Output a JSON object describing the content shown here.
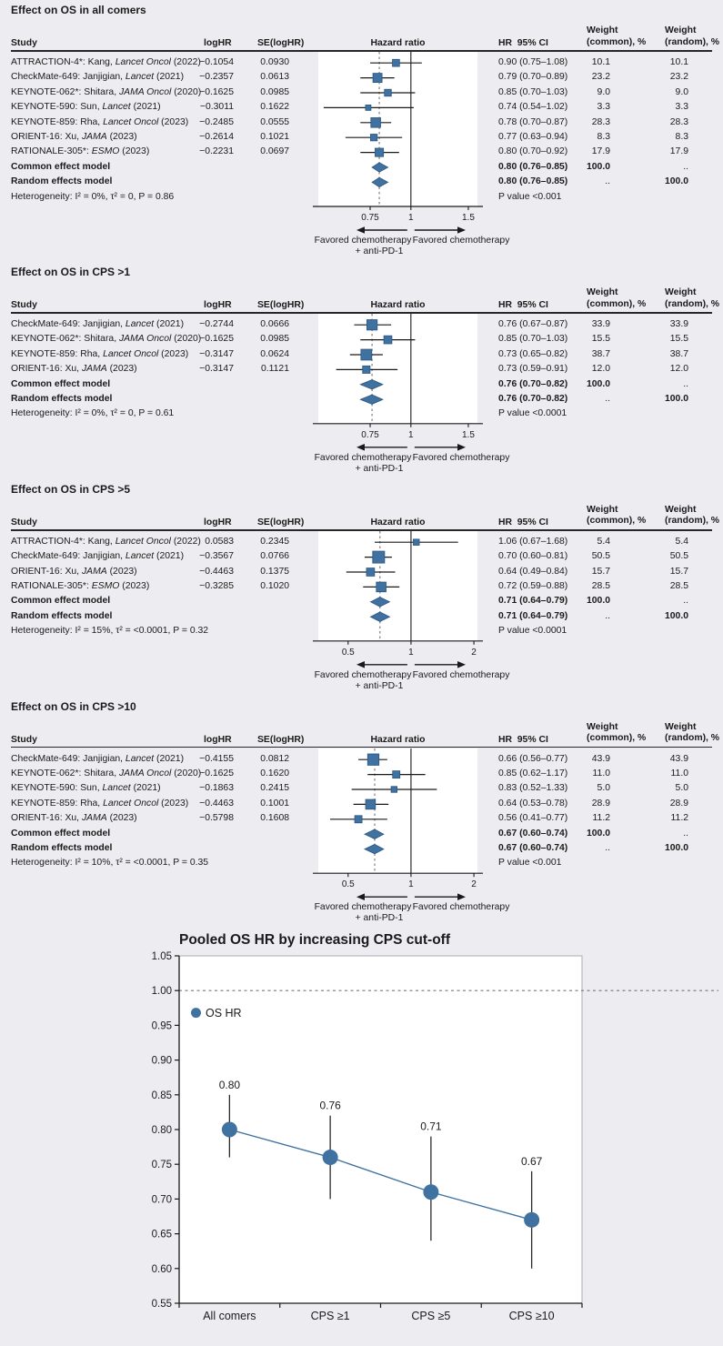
{
  "colors": {
    "accent": "#3f72a0",
    "accent_stroke": "#2a5580",
    "ci_line": "#1a1a1a",
    "pooled_dash": "#8a8a8a",
    "page_bg": "#ededf1",
    "panel_bg": "#ffffff"
  },
  "forest_header": {
    "study": "Study",
    "loghr": "logHR",
    "se": "SE(logHR)",
    "hazard": "Hazard ratio",
    "hr_ci": "HR  95% CI",
    "w_common": "Weight\n(common), %",
    "w_random": "Weight\n(random), %"
  },
  "forest_footer": {
    "left1": "Favored chemotherapy",
    "left2": "+ anti-PD-1",
    "right": "Favored chemotherapy"
  },
  "chart_data": [
    {
      "type": "forest",
      "title": "Effect on OS in all comers",
      "axis": {
        "ticks": [
          0.75,
          1,
          1.5
        ],
        "min": 0.52,
        "max": 1.6
      },
      "studies": [
        {
          "label": [
            "ATTRACTION-4*: Kang, ",
            "Lancet Oncol",
            " (2022)"
          ],
          "loghr": "−0.1054",
          "se": "0.0930",
          "hr": 0.9,
          "lo": 0.75,
          "hi": 1.08,
          "hr_ci": "0.90 (0.75–1.08)",
          "weight": 10.1,
          "w_common": "10.1",
          "w_random": "10.1"
        },
        {
          "label": [
            "CheckMate-649: Janjigian, ",
            "Lancet",
            " (2021)"
          ],
          "loghr": "−0.2357",
          "se": "0.0613",
          "hr": 0.79,
          "lo": 0.7,
          "hi": 0.89,
          "hr_ci": "0.79 (0.70–0.89)",
          "weight": 23.2,
          "w_common": "23.2",
          "w_random": "23.2"
        },
        {
          "label": [
            "KEYNOTE-062*: Shitara, ",
            "JAMA Oncol",
            " (2020)"
          ],
          "loghr": "−0.1625",
          "se": "0.0985",
          "hr": 0.85,
          "lo": 0.7,
          "hi": 1.03,
          "hr_ci": "0.85 (0.70–1.03)",
          "weight": 9.0,
          "w_common": "9.0",
          "w_random": "9.0"
        },
        {
          "label": [
            "KEYNOTE-590: Sun, ",
            "Lancet",
            " (2021)"
          ],
          "loghr": "−0.3011",
          "se": "0.1622",
          "hr": 0.74,
          "lo": 0.54,
          "hi": 1.02,
          "hr_ci": "0.74 (0.54–1.02)",
          "weight": 3.3,
          "w_common": "3.3",
          "w_random": "3.3"
        },
        {
          "label": [
            "KEYNOTE-859: Rha, ",
            "Lancet Oncol",
            " (2023)"
          ],
          "loghr": "−0.2485",
          "se": "0.0555",
          "hr": 0.78,
          "lo": 0.7,
          "hi": 0.87,
          "hr_ci": "0.78 (0.70–0.87)",
          "weight": 28.3,
          "w_common": "28.3",
          "w_random": "28.3"
        },
        {
          "label": [
            "ORIENT-16: Xu, ",
            "JAMA",
            " (2023)"
          ],
          "loghr": "−0.2614",
          "se": "0.1021",
          "hr": 0.77,
          "lo": 0.63,
          "hi": 0.94,
          "hr_ci": "0.77 (0.63–0.94)",
          "weight": 8.3,
          "w_common": "8.3",
          "w_random": "8.3"
        },
        {
          "label": [
            "RATIONALE-305*: ",
            "ESMO",
            " (2023)"
          ],
          "loghr": "−0.2231",
          "se": "0.0697",
          "hr": 0.8,
          "lo": 0.7,
          "hi": 0.92,
          "hr_ci": "0.80 (0.70–0.92)",
          "weight": 17.9,
          "w_common": "17.9",
          "w_random": "17.9"
        }
      ],
      "common": {
        "label": "Common effect model",
        "hr": 0.8,
        "lo": 0.76,
        "hi": 0.85,
        "hr_ci": "0.80 (0.76–0.85)",
        "w_common": "100.0",
        "w_random": ".."
      },
      "random": {
        "label": "Random effects model",
        "hr": 0.8,
        "lo": 0.76,
        "hi": 0.85,
        "hr_ci": "0.80 (0.76–0.85)",
        "w_common": "..",
        "w_random": "100.0"
      },
      "heterogeneity": "Heterogeneity: I² = 0%, τ² = 0, P = 0.86",
      "p_value": "P value <0.001"
    },
    {
      "type": "forest",
      "title": "Effect on OS in CPS >1",
      "axis": {
        "ticks": [
          0.75,
          1,
          1.5
        ],
        "min": 0.52,
        "max": 1.6
      },
      "studies": [
        {
          "label": [
            "CheckMate-649: Janjigian, ",
            "Lancet",
            " (2021)"
          ],
          "loghr": "−0.2744",
          "se": "0.0666",
          "hr": 0.76,
          "lo": 0.67,
          "hi": 0.87,
          "hr_ci": "0.76 (0.67–0.87)",
          "weight": 33.9,
          "w_common": "33.9",
          "w_random": "33.9"
        },
        {
          "label": [
            "KEYNOTE-062*: Shitara, ",
            "JAMA Oncol",
            " (2020)"
          ],
          "loghr": "−0.1625",
          "se": "0.0985",
          "hr": 0.85,
          "lo": 0.7,
          "hi": 1.03,
          "hr_ci": "0.85 (0.70–1.03)",
          "weight": 15.5,
          "w_common": "15.5",
          "w_random": "15.5"
        },
        {
          "label": [
            "KEYNOTE-859: Rha, ",
            "Lancet Oncol",
            " (2023)"
          ],
          "loghr": "−0.3147",
          "se": "0.0624",
          "hr": 0.73,
          "lo": 0.65,
          "hi": 0.82,
          "hr_ci": "0.73 (0.65–0.82)",
          "weight": 38.7,
          "w_common": "38.7",
          "w_random": "38.7"
        },
        {
          "label": [
            "ORIENT-16: Xu, ",
            "JAMA",
            " (2023)"
          ],
          "loghr": "−0.3147",
          "se": "0.1121",
          "hr": 0.73,
          "lo": 0.59,
          "hi": 0.91,
          "hr_ci": "0.73 (0.59–0.91)",
          "weight": 12.0,
          "w_common": "12.0",
          "w_random": "12.0"
        }
      ],
      "common": {
        "label": "Common effect model",
        "hr": 0.76,
        "lo": 0.7,
        "hi": 0.82,
        "hr_ci": "0.76 (0.70–0.82)",
        "w_common": "100.0",
        "w_random": ".."
      },
      "random": {
        "label": "Random effects model",
        "hr": 0.76,
        "lo": 0.7,
        "hi": 0.82,
        "hr_ci": "0.76 (0.70–0.82)",
        "w_common": "..",
        "w_random": "100.0"
      },
      "heterogeneity": "Heterogeneity: I² = 0%, τ² = 0, P = 0.61",
      "p_value": "P value <0.0001"
    },
    {
      "type": "forest",
      "title": "Effect on OS in CPS >5",
      "axis": {
        "ticks": [
          0.5,
          1,
          2
        ],
        "min": 0.36,
        "max": 2.08
      },
      "studies": [
        {
          "label": [
            "ATTRACTION-4*: Kang, ",
            "Lancet Oncol",
            " (2022)"
          ],
          "loghr": "0.0583",
          "se": "0.2345",
          "hr": 1.06,
          "lo": 0.67,
          "hi": 1.68,
          "hr_ci": "1.06 (0.67–1.68)",
          "weight": 5.4,
          "w_common": "5.4",
          "w_random": "5.4"
        },
        {
          "label": [
            "CheckMate-649: Janjigian, ",
            "Lancet",
            " (2021)"
          ],
          "loghr": "−0.3567",
          "se": "0.0766",
          "hr": 0.7,
          "lo": 0.6,
          "hi": 0.81,
          "hr_ci": "0.70 (0.60–0.81)",
          "weight": 50.5,
          "w_common": "50.5",
          "w_random": "50.5"
        },
        {
          "label": [
            "ORIENT-16: Xu, ",
            "JAMA",
            " (2023)"
          ],
          "loghr": "−0.4463",
          "se": "0.1375",
          "hr": 0.64,
          "lo": 0.49,
          "hi": 0.84,
          "hr_ci": "0.64 (0.49–0.84)",
          "weight": 15.7,
          "w_common": "15.7",
          "w_random": "15.7"
        },
        {
          "label": [
            "RATIONALE-305*: ",
            "ESMO",
            " (2023)"
          ],
          "loghr": "−0.3285",
          "se": "0.1020",
          "hr": 0.72,
          "lo": 0.59,
          "hi": 0.88,
          "hr_ci": "0.72 (0.59–0.88)",
          "weight": 28.5,
          "w_common": "28.5",
          "w_random": "28.5"
        }
      ],
      "common": {
        "label": "Common effect model",
        "hr": 0.71,
        "lo": 0.64,
        "hi": 0.79,
        "hr_ci": "0.71 (0.64–0.79)",
        "w_common": "100.0",
        "w_random": ".."
      },
      "random": {
        "label": "Random effects model",
        "hr": 0.71,
        "lo": 0.64,
        "hi": 0.79,
        "hr_ci": "0.71 (0.64–0.79)",
        "w_common": "..",
        "w_random": "100.0"
      },
      "heterogeneity": "Heterogeneity: I² = 15%, τ² = <0.0001, P = 0.32",
      "p_value": "P value <0.0001"
    },
    {
      "type": "forest",
      "title": "Effect on OS in CPS >10",
      "axis": {
        "ticks": [
          0.5,
          1,
          2
        ],
        "min": 0.36,
        "max": 2.08
      },
      "studies": [
        {
          "label": [
            "CheckMate-649: Janjigian, ",
            "Lancet",
            " (2021)"
          ],
          "loghr": "−0.4155",
          "se": "0.0812",
          "hr": 0.66,
          "lo": 0.56,
          "hi": 0.77,
          "hr_ci": "0.66 (0.56–0.77)",
          "weight": 43.9,
          "w_common": "43.9",
          "w_random": "43.9"
        },
        {
          "label": [
            "KEYNOTE-062*: Shitara, ",
            "JAMA Oncol",
            " (2020)"
          ],
          "loghr": "−0.1625",
          "se": "0.1620",
          "hr": 0.85,
          "lo": 0.62,
          "hi": 1.17,
          "hr_ci": "0.85 (0.62–1.17)",
          "weight": 11.0,
          "w_common": "11.0",
          "w_random": "11.0"
        },
        {
          "label": [
            "KEYNOTE-590: Sun, ",
            "Lancet",
            " (2021)"
          ],
          "loghr": "−0.1863",
          "se": "0.2415",
          "hr": 0.83,
          "lo": 0.52,
          "hi": 1.33,
          "hr_ci": "0.83 (0.52–1.33)",
          "weight": 5.0,
          "w_common": "5.0",
          "w_random": "5.0"
        },
        {
          "label": [
            "KEYNOTE-859: Rha, ",
            "Lancet Oncol",
            " (2023)"
          ],
          "loghr": "−0.4463",
          "se": "0.1001",
          "hr": 0.64,
          "lo": 0.53,
          "hi": 0.78,
          "hr_ci": "0.64 (0.53–0.78)",
          "weight": 28.9,
          "w_common": "28.9",
          "w_random": "28.9"
        },
        {
          "label": [
            "ORIENT-16: Xu, ",
            "JAMA",
            " (2023)"
          ],
          "loghr": "−0.5798",
          "se": "0.1608",
          "hr": 0.56,
          "lo": 0.41,
          "hi": 0.77,
          "hr_ci": "0.56 (0.41–0.77)",
          "weight": 11.2,
          "w_common": "11.2",
          "w_random": "11.2"
        }
      ],
      "common": {
        "label": "Common effect model",
        "hr": 0.67,
        "lo": 0.6,
        "hi": 0.74,
        "hr_ci": "0.67 (0.60–0.74)",
        "w_common": "100.0",
        "w_random": ".."
      },
      "random": {
        "label": "Random effects model",
        "hr": 0.67,
        "lo": 0.6,
        "hi": 0.74,
        "hr_ci": "0.67 (0.60–0.74)",
        "w_common": "..",
        "w_random": "100.0"
      },
      "heterogeneity": "Heterogeneity: I² = 10%, τ² = <0.0001, P = 0.35",
      "p_value": "P value <0.001"
    },
    {
      "type": "line",
      "title": "Pooled OS HR by increasing CPS cut-off",
      "legend": "OS HR",
      "categories": [
        "All comers",
        "CPS ≥1",
        "CPS ≥5",
        "CPS ≥10"
      ],
      "values": [
        0.8,
        0.76,
        0.71,
        0.67
      ],
      "ci_low": [
        0.76,
        0.7,
        0.64,
        0.6
      ],
      "ci_high": [
        0.85,
        0.82,
        0.79,
        0.74
      ],
      "point_labels": [
        "0.80",
        "0.76",
        "0.71",
        "0.67"
      ],
      "ylim": [
        0.55,
        1.05
      ],
      "ytick_step": 0.05,
      "reference_line": 1.0,
      "grid": false,
      "legend_position": "top-left",
      "xlabel": "",
      "ylabel": ""
    }
  ]
}
